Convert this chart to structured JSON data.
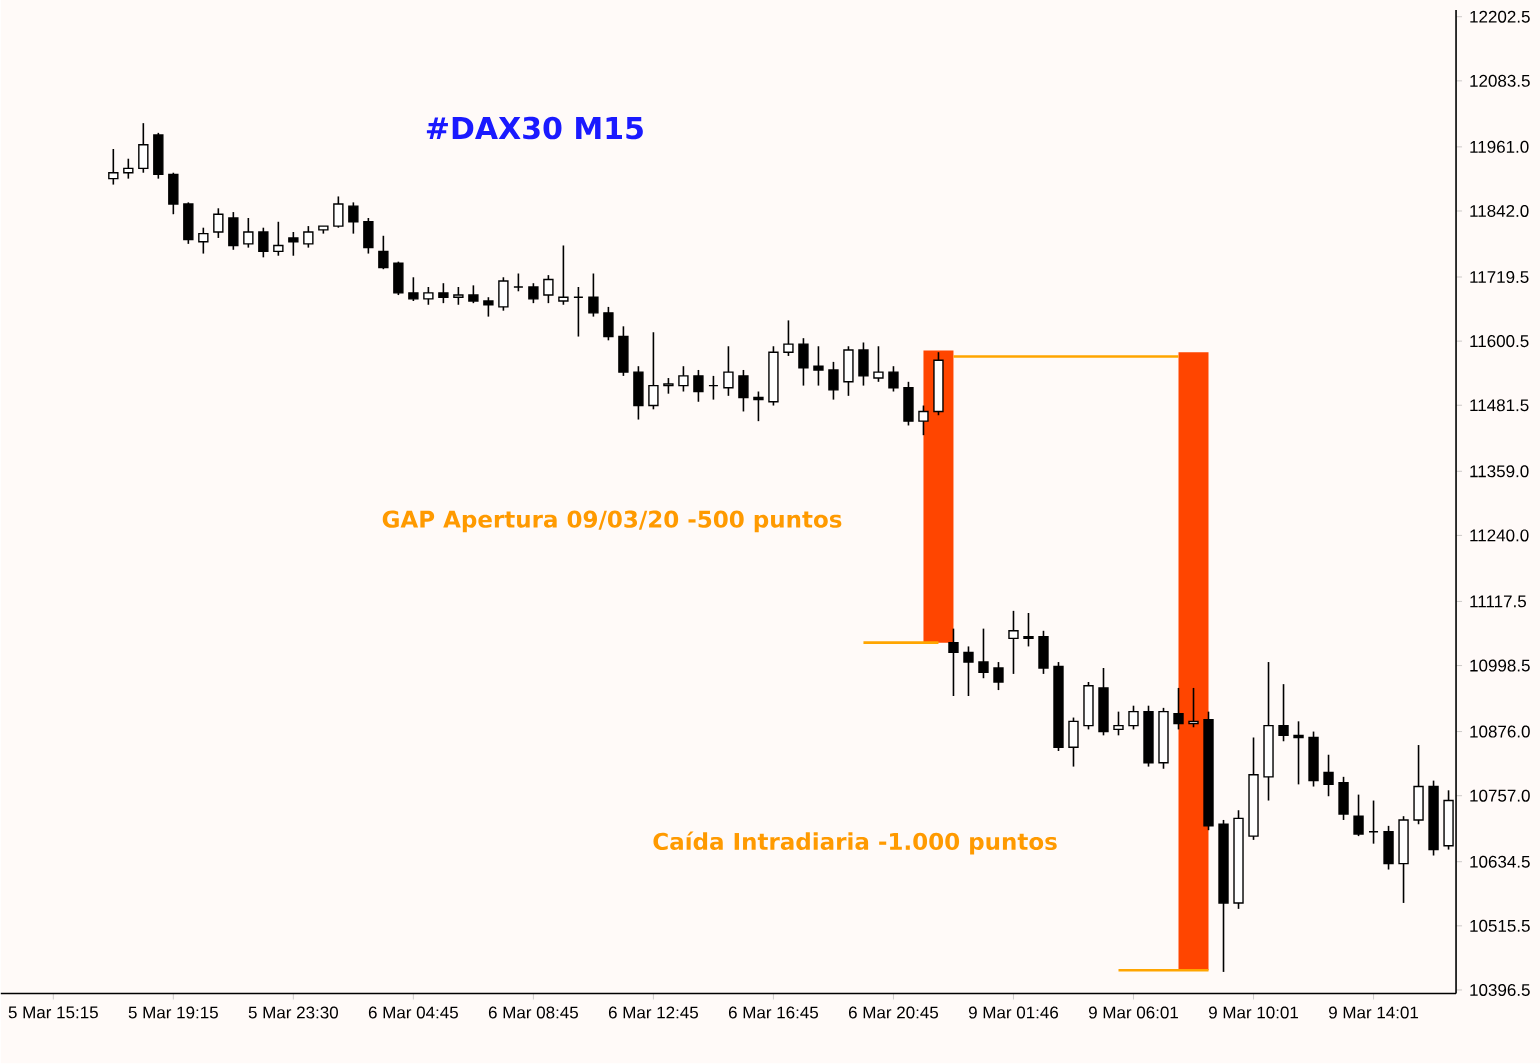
{
  "chart_data": {
    "type": "candlestick",
    "title": "#DAX30 M15",
    "annotations": [
      "GAP Apertura 09/03/20 -500 puntos",
      "Caída Intradiaria -1.000 puntos"
    ],
    "categories": [
      "5 Mar 15:15",
      null,
      null,
      null,
      null,
      null,
      null,
      null,
      "5 Mar 19:15",
      null,
      null,
      null,
      null,
      null,
      null,
      null,
      "5 Mar 23:30",
      null,
      null,
      null,
      null,
      null,
      null,
      null,
      "6 Mar 04:45",
      null,
      null,
      null,
      null,
      null,
      null,
      null,
      "6 Mar 08:45",
      null,
      null,
      null,
      null,
      null,
      null,
      null,
      "6 Mar 12:45",
      null,
      null,
      null,
      null,
      null,
      null,
      null,
      "6 Mar 16:45",
      null,
      null,
      null,
      null,
      null,
      null,
      null,
      "6 Mar 20:45",
      null,
      null,
      null,
      null,
      null,
      null,
      null,
      "9 Mar 01:46",
      null,
      null,
      null,
      null,
      null,
      null,
      null,
      "9 Mar 06:01",
      null,
      null,
      null,
      null,
      null,
      null,
      null,
      "9 Mar 10:01",
      null,
      null,
      null,
      null,
      null,
      null,
      null,
      "9 Mar 14:01",
      null,
      null,
      null,
      null,
      null
    ],
    "ohlc": [
      null,
      null,
      null,
      null,
      [
        11902,
        11957,
        11891,
        11913
      ],
      [
        11913,
        11939,
        11902,
        11921
      ],
      [
        11921,
        12005,
        11913,
        11965
      ],
      [
        11983,
        11987,
        11902,
        11910
      ],
      [
        11910,
        11913,
        11836,
        11855
      ],
      [
        11855,
        11858,
        11781,
        11789
      ],
      [
        11785,
        11811,
        11763,
        11800
      ],
      [
        11803,
        11847,
        11792,
        11836
      ],
      [
        11829,
        11840,
        11770,
        11778
      ],
      [
        11781,
        11829,
        11774,
        11803
      ],
      [
        11803,
        11811,
        11756,
        11767
      ],
      [
        11767,
        11822,
        11759,
        11778
      ],
      [
        11792,
        11803,
        11759,
        11785
      ],
      [
        11781,
        11814,
        11774,
        11803
      ],
      [
        11807,
        11814,
        11800,
        11814
      ],
      [
        11814,
        11869,
        11811,
        11855
      ],
      [
        11851,
        11858,
        11800,
        11822
      ],
      [
        11822,
        11829,
        11763,
        11774
      ],
      [
        11767,
        11796,
        11734,
        11737
      ],
      [
        11745,
        11748,
        11686,
        11690
      ],
      [
        11690,
        11719,
        11675,
        11679
      ],
      [
        11679,
        11701,
        11668,
        11690
      ],
      [
        11690,
        11708,
        11671,
        11682
      ],
      [
        11682,
        11701,
        11668,
        11686
      ],
      [
        11686,
        11704,
        11671,
        11675
      ],
      [
        11675,
        11682,
        11646,
        11668
      ],
      [
        11664,
        11719,
        11657,
        11712
      ],
      [
        11701,
        11726,
        11693,
        11701
      ],
      [
        11701,
        11708,
        11671,
        11679
      ],
      [
        11686,
        11723,
        11671,
        11715
      ],
      [
        11675,
        11778,
        11668,
        11682
      ],
      [
        11682,
        11701,
        11609,
        11682
      ],
      [
        11682,
        11726,
        11646,
        11653
      ],
      [
        11653,
        11664,
        11602,
        11609
      ],
      [
        11609,
        11628,
        11536,
        11543
      ],
      [
        11543,
        11554,
        11455,
        11481
      ],
      [
        11481,
        11617,
        11474,
        11518
      ],
      [
        11518,
        11532,
        11503,
        11521
      ],
      [
        11518,
        11554,
        11507,
        11536
      ],
      [
        11536,
        11547,
        11488,
        11507
      ],
      [
        11518,
        11536,
        11492,
        11518
      ],
      [
        11514,
        11591,
        11499,
        11543
      ],
      [
        11536,
        11547,
        11470,
        11496
      ],
      [
        11496,
        11507,
        11452,
        11492
      ],
      [
        11488,
        11591,
        11481,
        11580
      ],
      [
        11580,
        11639,
        11573,
        11595
      ],
      [
        11595,
        11606,
        11518,
        11551
      ],
      [
        11554,
        11591,
        11518,
        11547
      ],
      [
        11547,
        11562,
        11492,
        11510
      ],
      [
        11525,
        11591,
        11499,
        11584
      ],
      [
        11584,
        11598,
        11518,
        11536
      ],
      [
        11532,
        11591,
        11525,
        11543
      ],
      [
        11543,
        11554,
        11507,
        11514
      ],
      [
        11514,
        11525,
        11444,
        11452
      ],
      [
        11452,
        11481,
        11426,
        11470
      ],
      [
        11470,
        11580,
        11463,
        11565
      ],
      [
        11041,
        11067,
        10942,
        11023
      ],
      [
        11023,
        11034,
        10942,
        11005
      ],
      [
        11005,
        11067,
        10975,
        10986
      ],
      [
        10994,
        11005,
        10953,
        10968
      ],
      [
        11049,
        11100,
        10983,
        11063
      ],
      [
        11052,
        11096,
        11034,
        11049
      ],
      [
        11052,
        11063,
        10983,
        10994
      ],
      [
        10997,
        11005,
        10840,
        10847
      ],
      [
        10847,
        10902,
        10811,
        10895
      ],
      [
        10887,
        10968,
        10880,
        10961
      ],
      [
        10957,
        10994,
        10869,
        10876
      ],
      [
        10880,
        10913,
        10869,
        10887
      ],
      [
        10887,
        10924,
        10880,
        10913
      ],
      [
        10913,
        10924,
        10811,
        10818
      ],
      [
        10818,
        10920,
        10807,
        10913
      ],
      [
        10909,
        10957,
        10880,
        10891
      ],
      [
        10891,
        10957,
        10884,
        10895
      ],
      [
        10898,
        10913,
        10693,
        10701
      ],
      [
        10704,
        10712,
        10430,
        10558
      ],
      [
        10558,
        10730,
        10547,
        10715
      ],
      [
        10682,
        10865,
        10675,
        10796
      ],
      [
        10792,
        11005,
        10748,
        10887
      ],
      [
        10887,
        10964,
        10858,
        10869
      ],
      [
        10869,
        10895,
        10778,
        10865
      ],
      [
        10865,
        10876,
        10774,
        10785
      ],
      [
        10800,
        10833,
        10756,
        10778
      ],
      [
        10781,
        10792,
        10712,
        10723
      ],
      [
        10719,
        10759,
        10682,
        10686
      ],
      [
        10690,
        10748,
        10668,
        10690
      ],
      [
        10690,
        10701,
        10620,
        10631
      ],
      [
        10631,
        10719,
        10558,
        10712
      ],
      [
        10712,
        10851,
        10704,
        10774
      ],
      [
        10774,
        10785,
        10646,
        10657
      ],
      [
        10664,
        10767,
        10657,
        10748
      ]
    ],
    "series": [
      {
        "type": "bar",
        "color": "#ff4500",
        "base": [
          null,
          null,
          null,
          null,
          null,
          null,
          null,
          null,
          null,
          null,
          null,
          null,
          null,
          null,
          null,
          null,
          null,
          null,
          null,
          null,
          null,
          null,
          null,
          null,
          null,
          null,
          null,
          null,
          null,
          null,
          null,
          null,
          null,
          null,
          null,
          null,
          null,
          null,
          null,
          null,
          null,
          null,
          null,
          null,
          null,
          null,
          null,
          null,
          null,
          null,
          null,
          null,
          null,
          null,
          null,
          null,
          null,
          null,
          null,
          11041,
          null,
          null,
          null,
          null,
          null,
          null,
          null,
          null,
          null,
          null,
          null,
          null,
          null,
          null,
          null,
          null,
          10433,
          null,
          null,
          null,
          null,
          null,
          null,
          null,
          null,
          null,
          null,
          null,
          null,
          null,
          null,
          null,
          null,
          null
        ],
        "values": [
          null,
          null,
          null,
          null,
          null,
          null,
          null,
          null,
          null,
          null,
          null,
          null,
          null,
          null,
          null,
          null,
          null,
          null,
          null,
          null,
          null,
          null,
          null,
          null,
          null,
          null,
          null,
          null,
          null,
          null,
          null,
          null,
          null,
          null,
          null,
          null,
          null,
          null,
          null,
          null,
          null,
          null,
          null,
          null,
          null,
          null,
          null,
          null,
          null,
          null,
          null,
          null,
          null,
          null,
          null,
          null,
          null,
          null,
          null,
          542,
          null,
          null,
          null,
          null,
          null,
          null,
          null,
          null,
          null,
          null,
          null,
          null,
          null,
          null,
          null,
          null,
          1147,
          null,
          null,
          null,
          null,
          null,
          null,
          null,
          null,
          null,
          null,
          null,
          null,
          null,
          null,
          null,
          null,
          null
        ]
      },
      {
        "type": "line",
        "color": "#ffa500",
        "values": [
          null,
          null,
          null,
          null,
          null,
          null,
          null,
          null,
          null,
          null,
          null,
          null,
          null,
          null,
          null,
          null,
          null,
          null,
          null,
          null,
          null,
          null,
          null,
          null,
          null,
          null,
          null,
          null,
          null,
          null,
          null,
          null,
          null,
          null,
          null,
          null,
          null,
          null,
          null,
          null,
          null,
          null,
          null,
          null,
          null,
          null,
          null,
          null,
          null,
          null,
          null,
          null,
          null,
          null,
          null,
          null,
          null,
          null,
          null,
          null,
          11572,
          11572,
          11572,
          11572,
          11572,
          11572,
          11572,
          11572,
          11572,
          11572,
          11572,
          11572,
          11572,
          11572,
          11572,
          11572,
          null,
          null,
          null,
          null,
          null,
          null,
          null,
          null,
          null,
          null,
          null,
          null,
          null,
          null,
          null,
          null,
          null,
          null
        ]
      },
      {
        "type": "line",
        "color": "#ffa500",
        "values": [
          null,
          null,
          null,
          null,
          null,
          null,
          null,
          null,
          null,
          null,
          null,
          null,
          null,
          null,
          null,
          null,
          null,
          null,
          null,
          null,
          null,
          null,
          null,
          null,
          null,
          null,
          null,
          null,
          null,
          null,
          null,
          null,
          null,
          null,
          null,
          null,
          null,
          null,
          null,
          null,
          null,
          null,
          null,
          null,
          null,
          null,
          null,
          null,
          null,
          null,
          null,
          null,
          null,
          null,
          11041,
          11041,
          11041,
          11041,
          11041,
          11041,
          null,
          null,
          null,
          null,
          null,
          null,
          null,
          null,
          null,
          null,
          null,
          null,
          null,
          null,
          null,
          null,
          null,
          null,
          null,
          null,
          null,
          null,
          null,
          null,
          null,
          null,
          null,
          null,
          null,
          null,
          null,
          null,
          null,
          null
        ]
      },
      {
        "type": "line",
        "color": "#ffa500",
        "values": [
          null,
          null,
          null,
          null,
          null,
          null,
          null,
          null,
          null,
          null,
          null,
          null,
          null,
          null,
          null,
          null,
          null,
          null,
          null,
          null,
          null,
          null,
          null,
          null,
          null,
          null,
          null,
          null,
          null,
          null,
          null,
          null,
          null,
          null,
          null,
          null,
          null,
          null,
          null,
          null,
          null,
          null,
          null,
          null,
          null,
          null,
          null,
          null,
          null,
          null,
          null,
          null,
          null,
          null,
          null,
          null,
          null,
          null,
          null,
          null,
          null,
          null,
          null,
          null,
          null,
          null,
          null,
          null,
          null,
          null,
          null,
          10433,
          10433,
          10433,
          10433,
          10433,
          10433,
          10433,
          null,
          null,
          null,
          null,
          null,
          null,
          null,
          null,
          null,
          null,
          null,
          null,
          null,
          null,
          null,
          null
        ]
      }
    ],
    "ylim": [
      10390,
      12215
    ],
    "yticks": [
      10396.5,
      10515.5,
      {
        "value": 10634.5,
        "label": "10634.5"
      },
      {
        "value": 10757,
        "label": "10757.0"
      },
      {
        "value": 10876,
        "label": "10876.0"
      },
      10998.5,
      11117.5,
      {
        "value": 11240,
        "label": "11240.0"
      },
      {
        "value": 11359,
        "label": "11359.0"
      },
      11481.5,
      11600.5,
      11719.5,
      {
        "value": 11842,
        "label": "11842.0"
      },
      {
        "value": 11961,
        "label": "11961.0"
      },
      12083.5,
      12202.5
    ]
  }
}
